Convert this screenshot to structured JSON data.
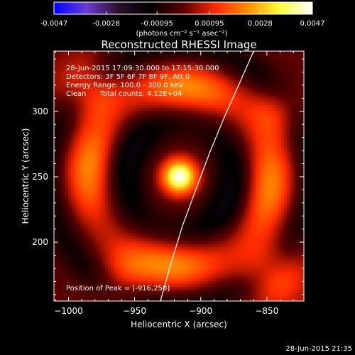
{
  "colorbar": {
    "min": -0.0047,
    "max": 0.0047,
    "tick_labels": [
      "-0.0047",
      "-0.0028",
      "-0.00095",
      "0.00095",
      "0.0028",
      "0.0047"
    ],
    "tick_values": [
      -0.0047,
      -0.0028,
      -0.00095,
      0.00095,
      0.0028,
      0.0047
    ],
    "units_label": "(photons cm⁻² s⁻¹ asec⁻²)",
    "colormap": [
      "#0000ff",
      "#6a3ed6",
      "#2a0f2a",
      "#000000",
      "#5a0000",
      "#ff2a00",
      "#ff8c00",
      "#ffff3a",
      "#ffffff"
    ]
  },
  "annotations": {
    "time_range": "28-Jun-2015 17:09:30.000 to 17:15:30.000",
    "detectors": "Detectors: 3F 5F 6F 7F 8F 9F, Att 0",
    "energy": "Energy Range: 100.0 - 300.0 keV",
    "clean_total": "Clean      Total counts: 4.12E+04",
    "peak": "Position of Peak = [-916,250]"
  },
  "footer": {
    "timestamp": "28-Jun-2015 21:35"
  },
  "chart_data": {
    "type": "heatmap",
    "title": "Reconstructed RHESSI Image",
    "xlabel": "Heliocentric X (arcsec)",
    "ylabel": "Heliocentric Y (arcsec)",
    "xlim": [
      -1011,
      -822
    ],
    "ylim": [
      155,
      346
    ],
    "x_ticks": [
      -1000,
      -950,
      -900,
      -850
    ],
    "x_tick_labels": [
      "−1000",
      "−950",
      "−900",
      "−850"
    ],
    "y_ticks": [
      200,
      250,
      300
    ],
    "y_tick_labels": [
      "200",
      "250",
      "300"
    ],
    "peak": {
      "x": -916,
      "y": 250,
      "value": 0.0047
    },
    "structure": {
      "core_radius_arcsec": 13,
      "dark_ring_radius_arcsec": 25,
      "purple_ring_radius_arcsec": 42,
      "outer_red_ring_radius_arcsec": 80
    },
    "limb_curve": [
      {
        "x": -930.5,
        "y": 155
      },
      {
        "x": -923,
        "y": 182
      },
      {
        "x": -914,
        "y": 212
      },
      {
        "x": -903,
        "y": 242
      },
      {
        "x": -893,
        "y": 269
      },
      {
        "x": -882,
        "y": 296
      },
      {
        "x": -870,
        "y": 323
      },
      {
        "x": -860,
        "y": 346
      }
    ]
  }
}
